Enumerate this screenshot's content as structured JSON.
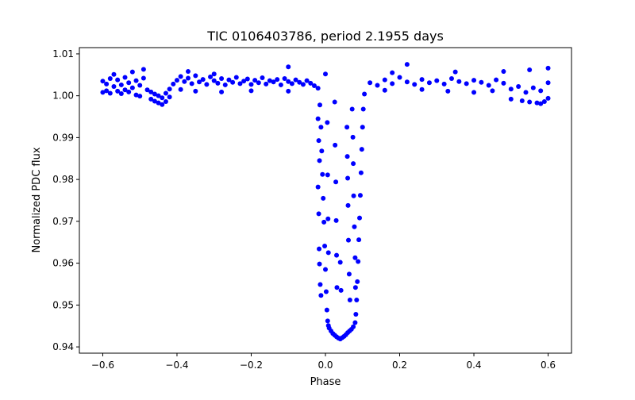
{
  "chart_data": {
    "type": "scatter",
    "title": "TIC 0106403786, period 2.1955 days",
    "xlabel": "Phase",
    "ylabel": "Normalized PDC flux",
    "xlim": [
      -0.663,
      0.663
    ],
    "ylim": [
      0.9385,
      1.0115
    ],
    "grid": false,
    "marker_color": "#0000ff",
    "x_ticks": [
      -0.6,
      -0.4,
      -0.2,
      0.0,
      0.2,
      0.4,
      0.6
    ],
    "x_tick_labels": [
      "−0.6",
      "−0.4",
      "−0.2",
      "0.0",
      "0.2",
      "0.4",
      "0.6"
    ],
    "y_ticks": [
      0.94,
      0.95,
      0.96,
      0.97,
      0.98,
      0.99,
      1.0,
      1.01
    ],
    "y_tick_labels": [
      "0.94",
      "0.95",
      "0.96",
      "0.97",
      "0.98",
      "0.99",
      "1.00",
      "1.01"
    ],
    "series": [
      {
        "points": [
          [
            -0.6,
            1.0035
          ],
          [
            -0.59,
            1.0028
          ],
          [
            -0.58,
            1.0041
          ],
          [
            -0.57,
            1.0022
          ],
          [
            -0.56,
            1.0038
          ],
          [
            -0.55,
            1.0026
          ],
          [
            -0.54,
            1.0044
          ],
          [
            -0.53,
            1.0031
          ],
          [
            -0.52,
            1.0019
          ],
          [
            -0.51,
            1.0036
          ],
          [
            -0.5,
            1.0025
          ],
          [
            -0.49,
            1.0042
          ],
          [
            -0.48,
            1.0014
          ],
          [
            -0.47,
            1.0009
          ],
          [
            -0.46,
            1.0004
          ],
          [
            -0.45,
            1.0
          ],
          [
            -0.44,
            0.9995
          ],
          [
            -0.43,
            1.0006
          ],
          [
            -0.42,
            1.0016
          ],
          [
            -0.41,
            1.0028
          ],
          [
            -0.4,
            1.0037
          ],
          [
            -0.39,
            1.0046
          ],
          [
            -0.38,
            1.0034
          ],
          [
            -0.37,
            1.0042
          ],
          [
            -0.36,
            1.0029
          ],
          [
            -0.35,
            1.0048
          ],
          [
            -0.34,
            1.0033
          ],
          [
            -0.33,
            1.0039
          ],
          [
            -0.32,
            1.0027
          ],
          [
            -0.31,
            1.0045
          ],
          [
            -0.3,
            1.0036
          ],
          [
            -0.29,
            1.003
          ],
          [
            -0.28,
            1.0041
          ],
          [
            -0.27,
            1.0026
          ],
          [
            -0.26,
            1.0038
          ],
          [
            -0.25,
            1.0032
          ],
          [
            -0.24,
            1.0044
          ],
          [
            -0.23,
            1.0029
          ],
          [
            -0.22,
            1.0035
          ],
          [
            -0.21,
            1.004
          ],
          [
            -0.2,
            1.0027
          ],
          [
            -0.19,
            1.0037
          ],
          [
            -0.18,
            1.0031
          ],
          [
            -0.17,
            1.0043
          ],
          [
            -0.16,
            1.0028
          ],
          [
            -0.15,
            1.0036
          ],
          [
            -0.14,
            1.0033
          ],
          [
            -0.13,
            1.0039
          ],
          [
            -0.12,
            1.0026
          ],
          [
            -0.11,
            1.0041
          ],
          [
            -0.1,
            1.0034
          ],
          [
            -0.09,
            1.0029
          ],
          [
            -0.08,
            1.0038
          ],
          [
            -0.07,
            1.0032
          ],
          [
            -0.06,
            1.0027
          ],
          [
            -0.05,
            1.0036
          ],
          [
            -0.04,
            1.003
          ],
          [
            -0.03,
            1.0024
          ],
          [
            -0.02,
            1.0018
          ],
          [
            -0.015,
            0.9978
          ],
          [
            -0.012,
            0.9925
          ],
          [
            -0.01,
            0.9868
          ],
          [
            -0.008,
            0.9812
          ],
          [
            -0.006,
            0.9755
          ],
          [
            -0.004,
            0.9698
          ],
          [
            -0.002,
            0.9641
          ],
          [
            0.0,
            0.9585
          ],
          [
            0.002,
            0.9532
          ],
          [
            0.004,
            0.9488
          ],
          [
            0.006,
            0.9462
          ],
          [
            0.008,
            0.9451
          ],
          [
            0.01,
            0.9445
          ],
          [
            0.015,
            0.9438
          ],
          [
            0.02,
            0.9432
          ],
          [
            0.025,
            0.9428
          ],
          [
            0.03,
            0.9424
          ],
          [
            0.035,
            0.9421
          ],
          [
            0.04,
            0.9419
          ],
          [
            0.045,
            0.9422
          ],
          [
            0.05,
            0.9425
          ],
          [
            0.055,
            0.9429
          ],
          [
            0.06,
            0.9434
          ],
          [
            0.065,
            0.9438
          ],
          [
            0.07,
            0.9442
          ],
          [
            0.075,
            0.9448
          ],
          [
            0.08,
            0.9458
          ],
          [
            0.082,
            0.9478
          ],
          [
            0.084,
            0.9512
          ],
          [
            0.086,
            0.9556
          ],
          [
            0.088,
            0.9604
          ],
          [
            0.09,
            0.9656
          ],
          [
            0.092,
            0.9708
          ],
          [
            0.094,
            0.9762
          ],
          [
            0.096,
            0.9816
          ],
          [
            0.098,
            0.9872
          ],
          [
            0.1,
            0.9925
          ],
          [
            0.102,
            0.9968
          ],
          [
            0.105,
            1.0004
          ],
          [
            0.12,
            1.0031
          ],
          [
            0.14,
            1.0025
          ],
          [
            0.16,
            1.0038
          ],
          [
            0.18,
            1.0029
          ],
          [
            0.2,
            1.0044
          ],
          [
            0.22,
            1.0033
          ],
          [
            0.24,
            1.0027
          ],
          [
            0.26,
            1.0039
          ],
          [
            0.28,
            1.0031
          ],
          [
            0.3,
            1.0036
          ],
          [
            0.32,
            1.0028
          ],
          [
            0.34,
            1.0041
          ],
          [
            0.36,
            1.0034
          ],
          [
            0.38,
            1.0029
          ],
          [
            0.4,
            1.0037
          ],
          [
            0.42,
            1.0032
          ],
          [
            0.44,
            1.0025
          ],
          [
            0.46,
            1.0038
          ],
          [
            0.48,
            1.003
          ],
          [
            0.5,
            1.0016
          ],
          [
            0.52,
            1.0022
          ],
          [
            0.54,
            1.0008
          ],
          [
            0.56,
            1.0019
          ],
          [
            0.58,
            1.0012
          ],
          [
            0.6,
            1.0031
          ],
          [
            -0.57,
            1.0051
          ],
          [
            -0.52,
            1.0057
          ],
          [
            -0.49,
            1.0063
          ],
          [
            -0.37,
            1.0058
          ],
          [
            -0.3,
            1.0052
          ],
          [
            -0.1,
            1.0069
          ],
          [
            0.0,
            1.0052
          ],
          [
            0.18,
            1.0055
          ],
          [
            0.22,
            1.0075
          ],
          [
            0.35,
            1.0057
          ],
          [
            0.48,
            1.0058
          ],
          [
            0.55,
            1.0062
          ],
          [
            0.6,
            1.0066
          ],
          [
            -0.6,
            1.0008
          ],
          [
            -0.59,
            1.0012
          ],
          [
            -0.58,
            1.0006
          ],
          [
            -0.56,
            1.0011
          ],
          [
            -0.55,
            1.0005
          ],
          [
            -0.54,
            1.0014
          ],
          [
            -0.53,
            1.0009
          ],
          [
            -0.51,
            1.0002
          ],
          [
            -0.5,
            0.9999
          ],
          [
            -0.47,
            0.9992
          ],
          [
            -0.46,
            0.9987
          ],
          [
            -0.45,
            0.9983
          ],
          [
            -0.44,
            0.9979
          ],
          [
            -0.43,
            0.9986
          ],
          [
            -0.42,
            0.9997
          ],
          [
            -0.39,
            1.0015
          ],
          [
            -0.35,
            1.0011
          ],
          [
            -0.28,
            1.0009
          ],
          [
            -0.2,
            1.0012
          ],
          [
            -0.1,
            1.0011
          ],
          [
            0.16,
            1.0013
          ],
          [
            0.26,
            1.0015
          ],
          [
            0.33,
            1.0011
          ],
          [
            0.4,
            1.0008
          ],
          [
            0.45,
            1.0012
          ],
          [
            0.5,
            0.9992
          ],
          [
            0.53,
            0.9988
          ],
          [
            0.55,
            0.9985
          ],
          [
            0.57,
            0.9983
          ],
          [
            0.58,
            0.9981
          ],
          [
            0.59,
            0.9986
          ],
          [
            0.6,
            0.9994
          ],
          [
            -0.02,
            0.9945
          ],
          [
            -0.018,
            0.9893
          ],
          [
            -0.016,
            0.9845
          ],
          [
            -0.02,
            0.9782
          ],
          [
            -0.018,
            0.9718
          ],
          [
            -0.017,
            0.9634
          ],
          [
            -0.016,
            0.9598
          ],
          [
            -0.014,
            0.9549
          ],
          [
            -0.012,
            0.9523
          ],
          [
            0.005,
            0.9936
          ],
          [
            0.006,
            0.9811
          ],
          [
            0.007,
            0.9706
          ],
          [
            0.008,
            0.9625
          ],
          [
            0.025,
            0.9985
          ],
          [
            0.026,
            0.9882
          ],
          [
            0.028,
            0.9794
          ],
          [
            0.029,
            0.9702
          ],
          [
            0.03,
            0.9619
          ],
          [
            0.031,
            0.9542
          ],
          [
            0.04,
            0.9602
          ],
          [
            0.042,
            0.9535
          ],
          [
            0.058,
            0.9925
          ],
          [
            0.059,
            0.9855
          ],
          [
            0.06,
            0.9803
          ],
          [
            0.061,
            0.9738
          ],
          [
            0.062,
            0.9655
          ],
          [
            0.064,
            0.9574
          ],
          [
            0.066,
            0.9512
          ],
          [
            0.072,
            0.9968
          ],
          [
            0.074,
            0.9901
          ],
          [
            0.075,
            0.9838
          ],
          [
            0.076,
            0.9761
          ],
          [
            0.078,
            0.9687
          ],
          [
            0.08,
            0.9613
          ],
          [
            0.081,
            0.9542
          ]
        ]
      }
    ]
  }
}
